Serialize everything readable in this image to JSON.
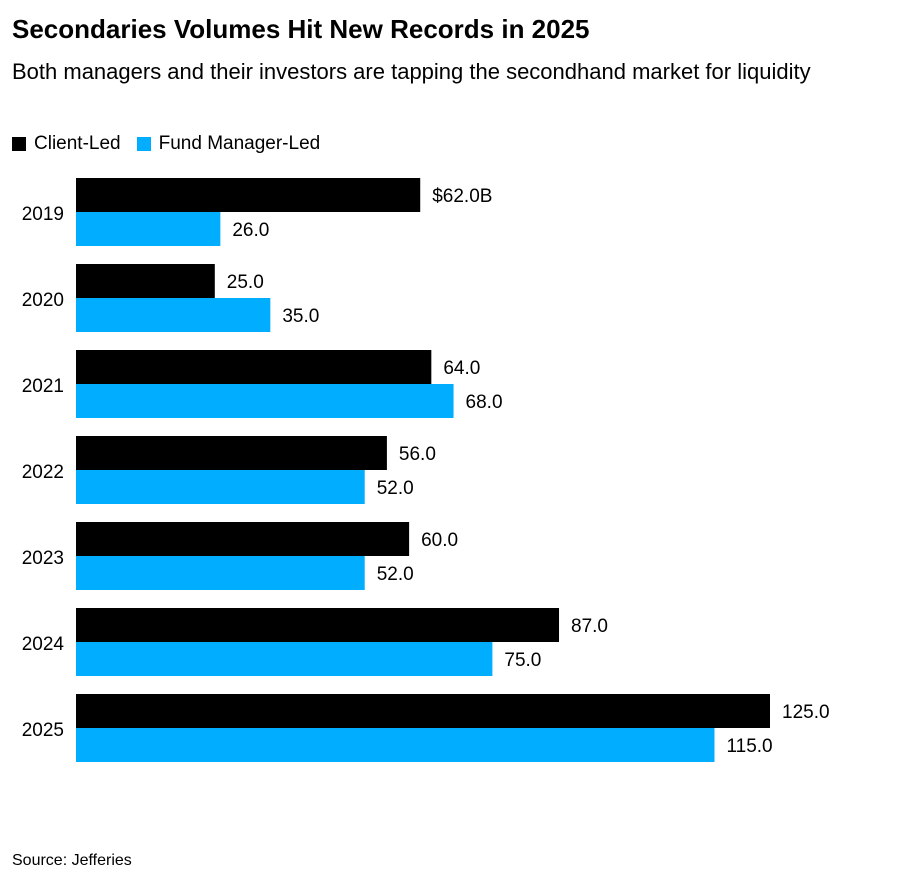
{
  "title": "Secondaries Volumes Hit New Records in 2025",
  "subtitle": "Both managers and their investors are tapping the secondhand market for liquidity",
  "source": "Source: Jefferies",
  "chart_data": {
    "type": "bar",
    "orientation": "horizontal",
    "categories": [
      "2019",
      "2020",
      "2021",
      "2022",
      "2023",
      "2024",
      "2025"
    ],
    "series": [
      {
        "name": "Client-Led",
        "color": "#000000",
        "values": [
          62.0,
          25.0,
          64.0,
          56.0,
          60.0,
          87.0,
          125.0
        ]
      },
      {
        "name": "Fund Manager-Led",
        "color": "#00adff",
        "values": [
          26.0,
          35.0,
          68.0,
          52.0,
          52.0,
          75.0,
          115.0
        ]
      }
    ],
    "value_prefix_first": "$",
    "value_suffix_first": "B",
    "legend": "top-left",
    "grid": false
  }
}
